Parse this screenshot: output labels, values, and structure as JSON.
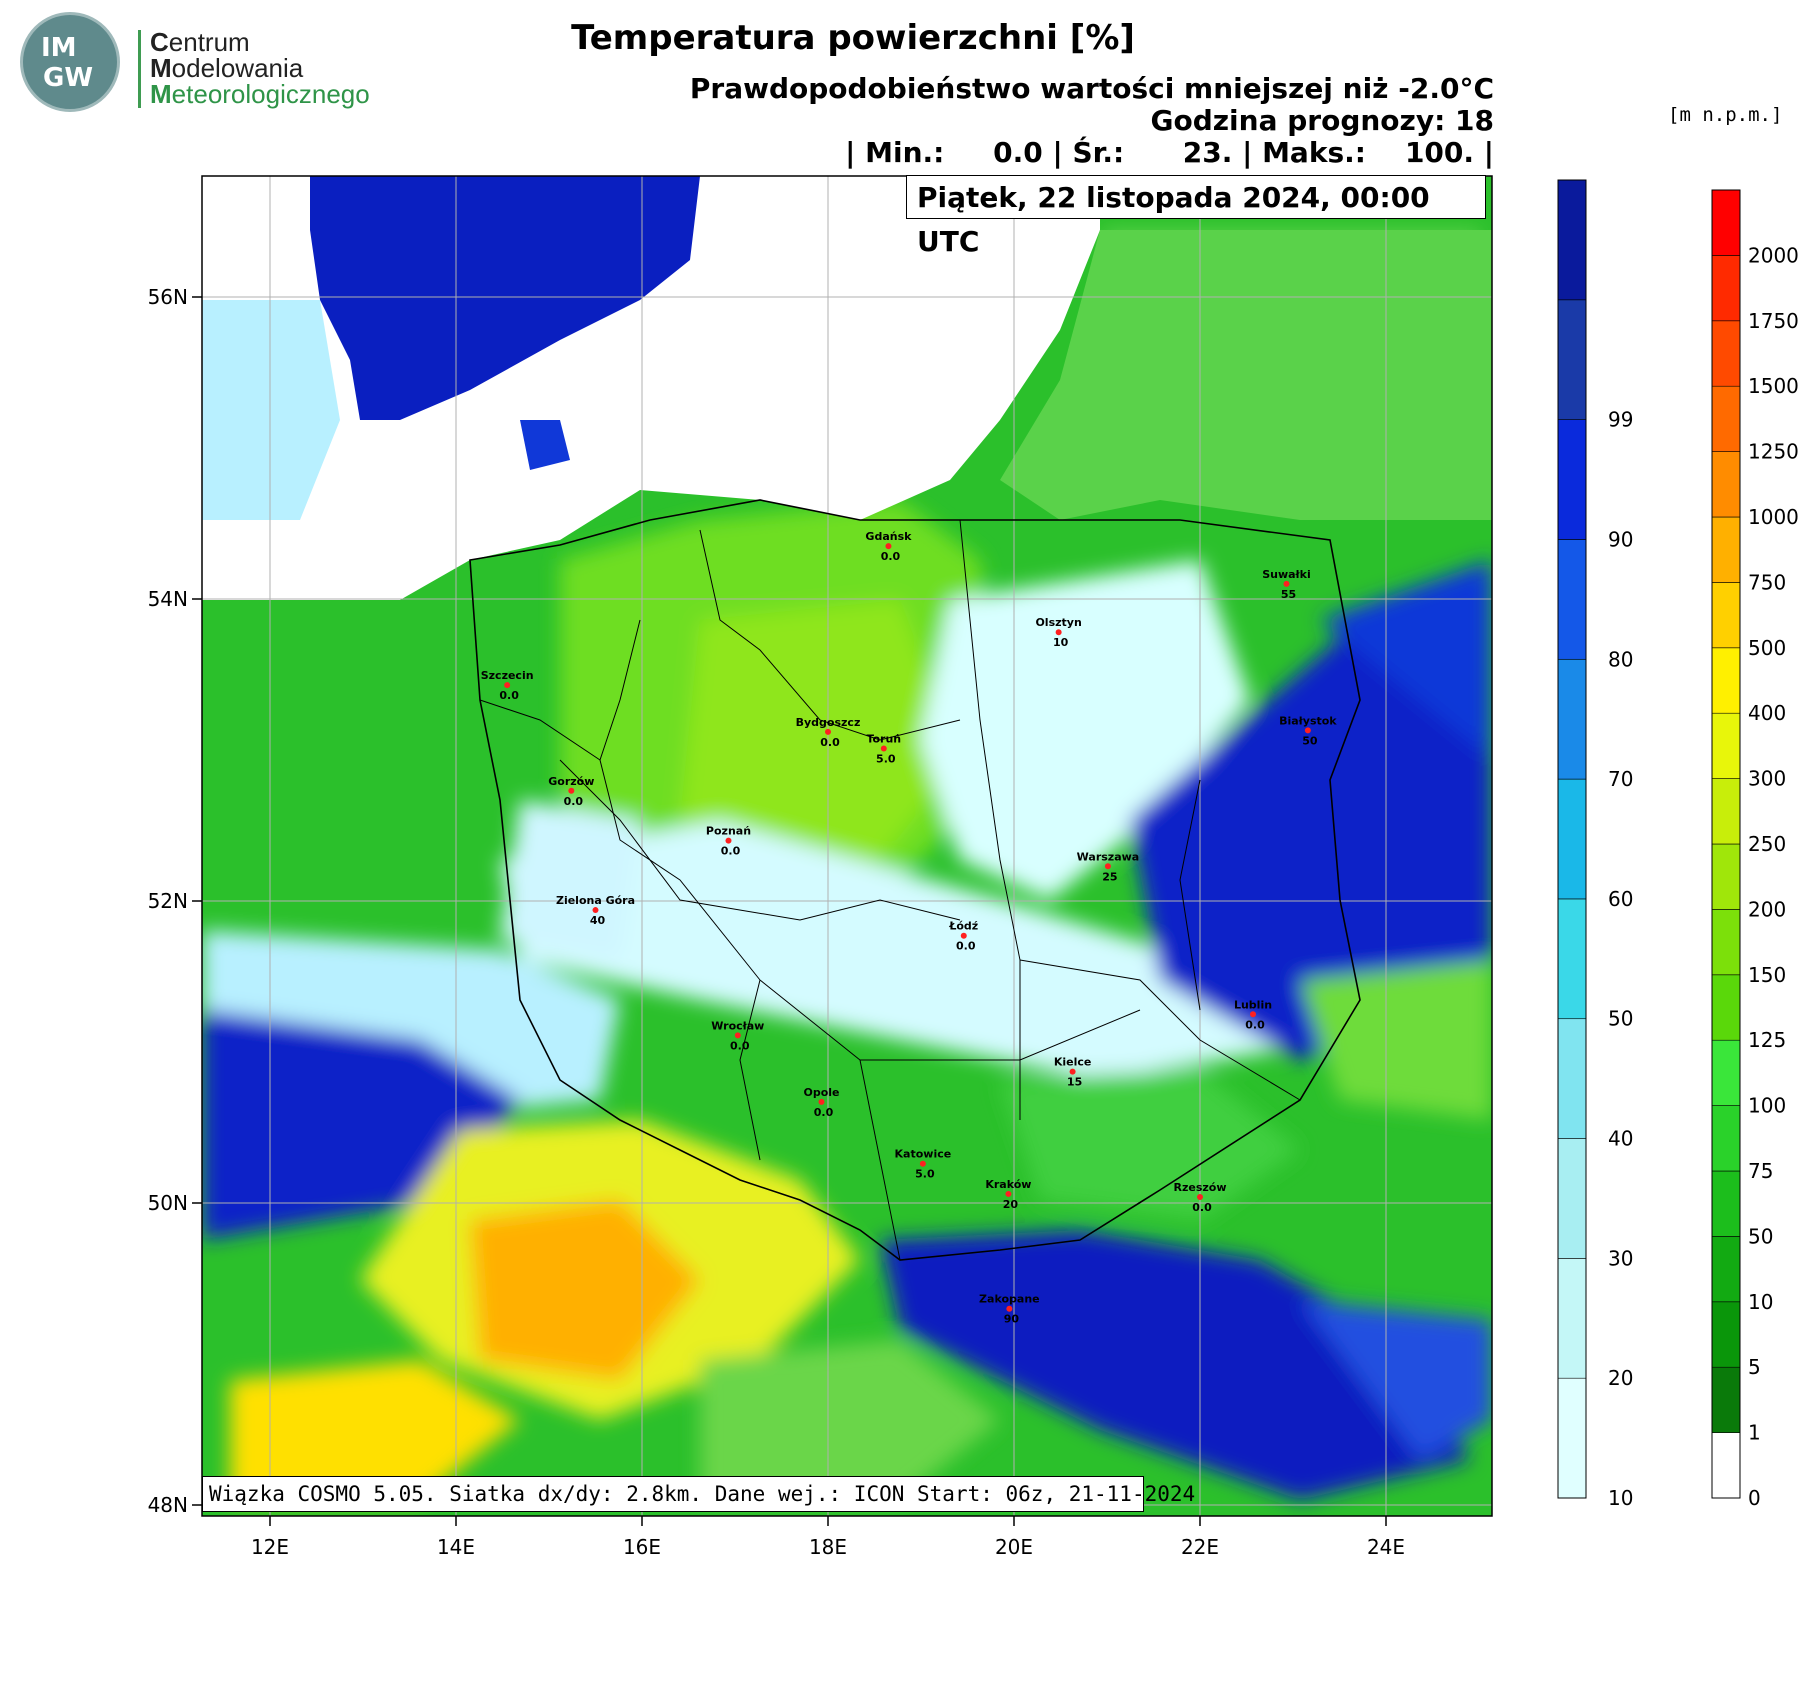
{
  "logo": {
    "mark_top": "IM",
    "mark_bottom": "GW",
    "line1_initial": "C",
    "line1_rest": "entrum",
    "line2_initial": "M",
    "line2_rest": "odelowania",
    "line3_initial": "M",
    "line3_rest": "eteorologicznego"
  },
  "header": {
    "title": "Temperatura powierzchni [%]",
    "subtitle": "Prawdopodobieństwo wartości mniejszej niż -2.0°C",
    "forecast_hour": "Godzina prognozy: 18",
    "stats": "| Min.:     0.0 | Śr.:      23. | Maks.:    100. |",
    "date": "Piątek, 22 listopada 2024, 00:00 UTC"
  },
  "footer": {
    "run_info": "Wiązka COSMO 5.05. Siatka dx/dy: 2.8km. Dane wej.: ICON Start: 06z, 21-11-2024"
  },
  "axes": {
    "lat_labels": [
      "56N",
      "54N",
      "52N",
      "50N",
      "48N"
    ],
    "lat_values": [
      56,
      54,
      52,
      50,
      48
    ],
    "lon_labels": [
      "12E",
      "14E",
      "16E",
      "18E",
      "20E",
      "22E",
      "24E"
    ],
    "lon_values": [
      12,
      14,
      16,
      18,
      20,
      22,
      24
    ]
  },
  "probability_legend": {
    "labels": [
      "10",
      "20",
      "30",
      "40",
      "50",
      "60",
      "70",
      "80",
      "90",
      "99"
    ],
    "colors": [
      "#e0ffff",
      "#c4f7f7",
      "#a8eef2",
      "#80e4f0",
      "#3ad8e8",
      "#1ab8e8",
      "#1a8ae8",
      "#1458e8",
      "#0a2adc",
      "#1a3aa8",
      "#0a1a9c"
    ]
  },
  "elevation_legend": {
    "unit": "[m  n.p.m.]",
    "labels": [
      "0",
      "1",
      "5",
      "10",
      "50",
      "75",
      "100",
      "125",
      "150",
      "200",
      "250",
      "300",
      "400",
      "500",
      "750",
      "1000",
      "1250",
      "1500",
      "1750",
      "2000"
    ],
    "colors": [
      "#ffffff",
      "#0a7a0a",
      "#0a960a",
      "#12aa12",
      "#1cbe1c",
      "#2ad22a",
      "#3ae63a",
      "#5ad80a",
      "#7ce00a",
      "#a0e60a",
      "#c8ee0a",
      "#e8f60a",
      "#fff000",
      "#ffd000",
      "#ffb000",
      "#ff8c00",
      "#ff6a00",
      "#ff4a00",
      "#ff2a00",
      "#ff0000"
    ]
  },
  "cities": [
    {
      "name": "Gdańsk",
      "value": "0.0",
      "lon": 18.65,
      "lat": 54.35
    },
    {
      "name": "Olsztyn",
      "value": "10",
      "lon": 20.48,
      "lat": 53.78
    },
    {
      "name": "Suwałki",
      "value": "55",
      "lon": 22.93,
      "lat": 54.1
    },
    {
      "name": "Szczecin",
      "value": "0.0",
      "lon": 14.55,
      "lat": 53.43
    },
    {
      "name": "Bydgoszcz",
      "value": "0.0",
      "lon": 18.0,
      "lat": 53.12
    },
    {
      "name": "Toruń",
      "value": "5.0",
      "lon": 18.6,
      "lat": 53.01
    },
    {
      "name": "Białystok",
      "value": "50",
      "lon": 23.16,
      "lat": 53.13
    },
    {
      "name": "Gorzów",
      "value": "0.0",
      "lon": 15.24,
      "lat": 52.73
    },
    {
      "name": "Poznań",
      "value": "0.0",
      "lon": 16.93,
      "lat": 52.4
    },
    {
      "name": "Warszawa",
      "value": "25",
      "lon": 21.01,
      "lat": 52.23
    },
    {
      "name": "Zielona Góra",
      "value": "40",
      "lon": 15.5,
      "lat": 51.94
    },
    {
      "name": "Łódź",
      "value": "0.0",
      "lon": 19.46,
      "lat": 51.77
    },
    {
      "name": "Lublin",
      "value": "0.0",
      "lon": 22.57,
      "lat": 51.25
    },
    {
      "name": "Wrocław",
      "value": "0.0",
      "lon": 17.03,
      "lat": 51.11
    },
    {
      "name": "Kielce",
      "value": "15",
      "lon": 20.63,
      "lat": 50.87
    },
    {
      "name": "Opole",
      "value": "0.0",
      "lon": 17.93,
      "lat": 50.67
    },
    {
      "name": "Katowice",
      "value": "5.0",
      "lon": 19.02,
      "lat": 50.26
    },
    {
      "name": "Kraków",
      "value": "20",
      "lon": 19.94,
      "lat": 50.06
    },
    {
      "name": "Rzeszów",
      "value": "0.0",
      "lon": 22.0,
      "lat": 50.04
    },
    {
      "name": "Zakopane",
      "value": "90",
      "lon": 19.95,
      "lat": 49.3
    }
  ],
  "field": {
    "description_zones": [
      "sea",
      "green lowland",
      "light blue frost zone",
      "deep blue mountains",
      "yellow/orange Czech basin"
    ]
  }
}
